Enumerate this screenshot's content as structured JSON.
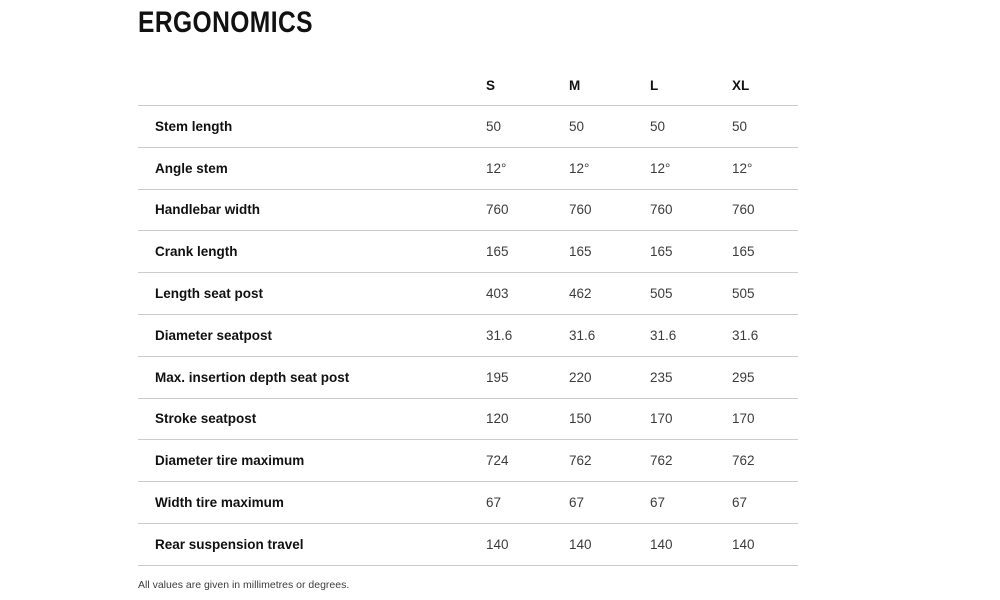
{
  "page": {
    "title": "ERGONOMICS",
    "footnote": "All values are given in millimetres or degrees."
  },
  "table": {
    "size_headers": [
      "S",
      "M",
      "L",
      "XL"
    ],
    "rows": [
      {
        "label": "Stem length",
        "values": [
          "50",
          "50",
          "50",
          "50"
        ]
      },
      {
        "label": "Angle stem",
        "values": [
          "12°",
          "12°",
          "12°",
          "12°"
        ]
      },
      {
        "label": "Handlebar width",
        "values": [
          "760",
          "760",
          "760",
          "760"
        ]
      },
      {
        "label": "Crank length",
        "values": [
          "165",
          "165",
          "165",
          "165"
        ]
      },
      {
        "label": "Length seat post",
        "values": [
          "403",
          "462",
          "505",
          "505"
        ]
      },
      {
        "label": "Diameter seatpost",
        "values": [
          "31.6",
          "31.6",
          "31.6",
          "31.6"
        ]
      },
      {
        "label": "Max. insertion depth seat post",
        "values": [
          "195",
          "220",
          "235",
          "295"
        ]
      },
      {
        "label": "Stroke seatpost",
        "values": [
          "120",
          "150",
          "170",
          "170"
        ]
      },
      {
        "label": "Diameter tire maximum",
        "values": [
          "724",
          "762",
          "762",
          "762"
        ]
      },
      {
        "label": "Width tire maximum",
        "values": [
          "67",
          "67",
          "67",
          "67"
        ]
      },
      {
        "label": "Rear suspension travel",
        "values": [
          "140",
          "140",
          "140",
          "140"
        ]
      }
    ]
  },
  "colors": {
    "text_primary": "#111111",
    "text_values": "#3c3c3c",
    "divider": "#cccccc"
  }
}
